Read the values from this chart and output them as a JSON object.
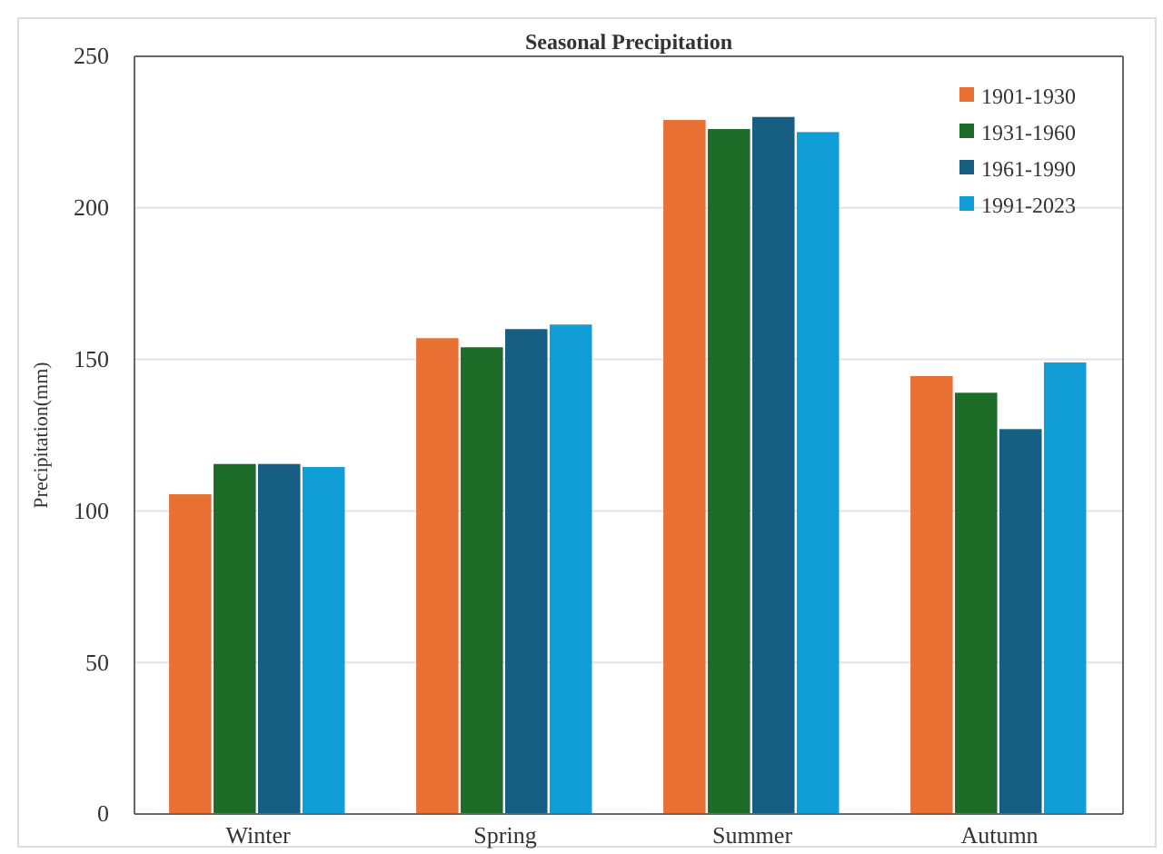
{
  "chart_data": {
    "type": "bar",
    "title": "Seasonal Precipitation",
    "ylabel": "Precipitation(mm)",
    "categories": [
      "Winter",
      "Spring",
      "Summer",
      "Autumn"
    ],
    "series": [
      {
        "name": "1901-1930",
        "color": "#e87033",
        "values": [
          105.5,
          157,
          229,
          144.5
        ]
      },
      {
        "name": "1931-1960",
        "color": "#1c6b27",
        "values": [
          115.5,
          154,
          226,
          139
        ]
      },
      {
        "name": "1961-1990",
        "color": "#165f82",
        "values": [
          115.5,
          160,
          230,
          127
        ]
      },
      {
        "name": "1991-2023",
        "color": "#119ed7",
        "values": [
          114.5,
          161.5,
          225,
          149
        ]
      }
    ],
    "ylim": [
      0,
      250
    ],
    "yticks": [
      0,
      50,
      100,
      150,
      200,
      250
    ],
    "grid": "y",
    "legend": "top right"
  }
}
